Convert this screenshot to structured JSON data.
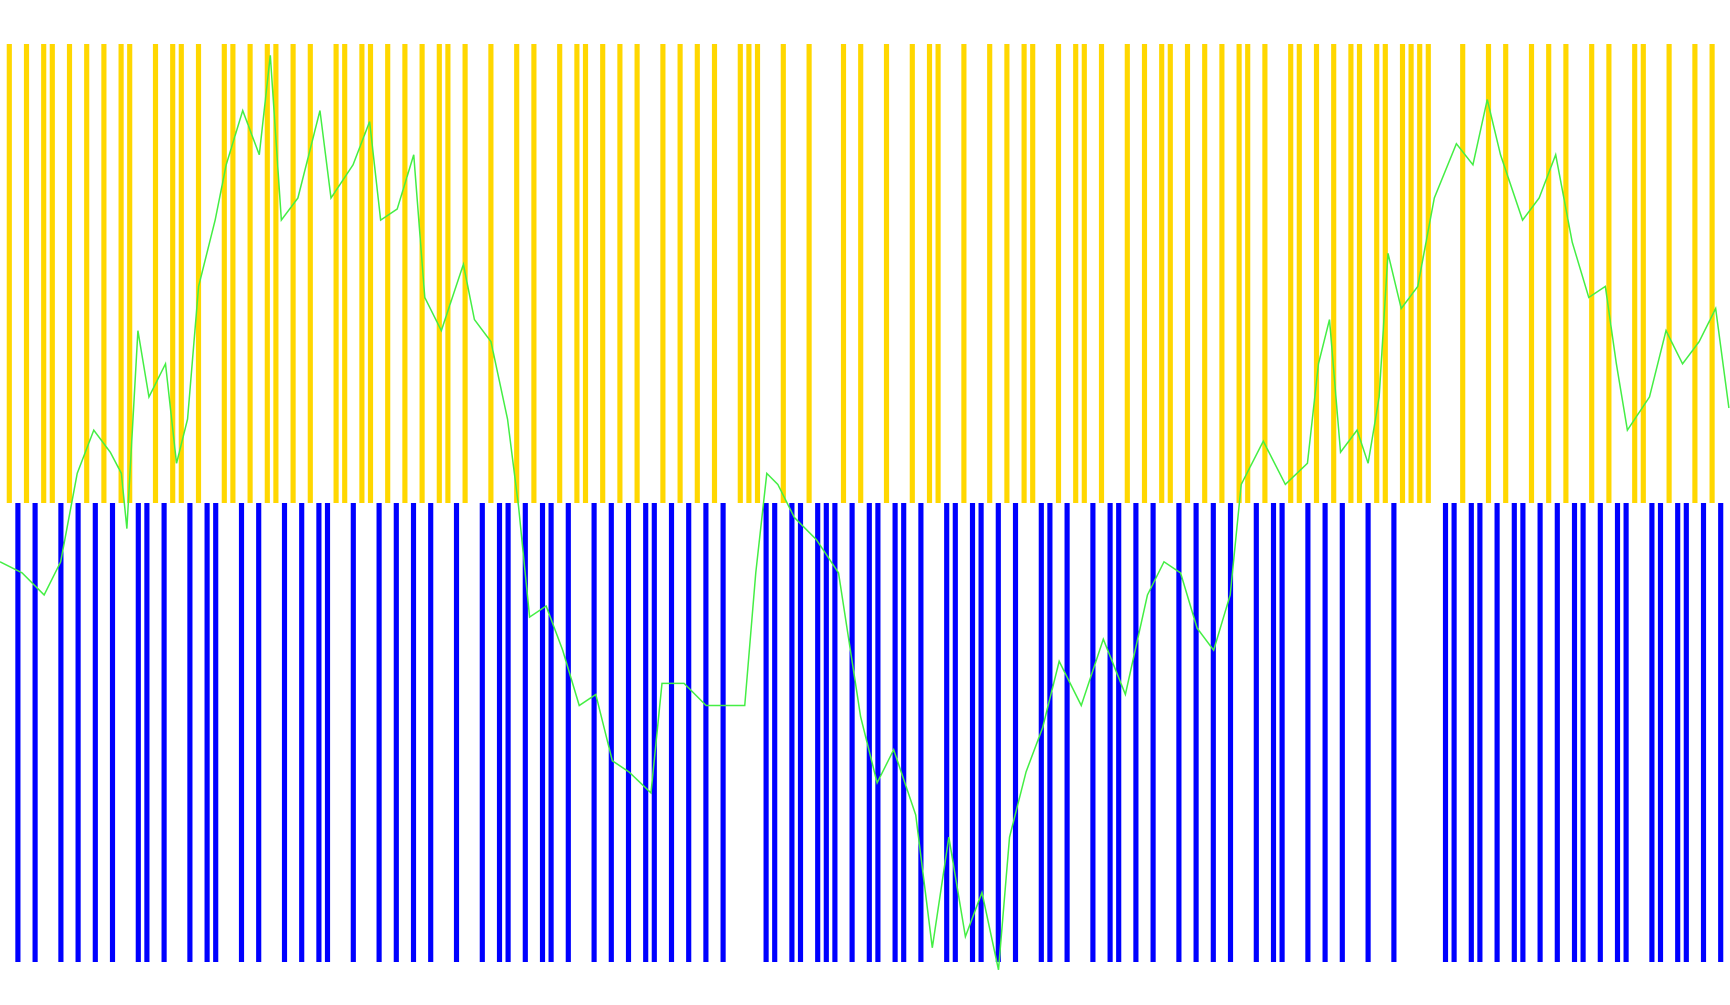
{
  "chart_data": [
    {
      "type": "bar",
      "values": [
        1,
        -1,
        1,
        -1,
        1,
        1,
        -1,
        1,
        -1,
        1,
        -1,
        1,
        -1,
        1,
        1,
        -1,
        -1,
        1,
        -1,
        1,
        1,
        -1,
        1,
        -1,
        -1,
        1,
        1,
        -1,
        1,
        -1,
        1,
        1,
        -1,
        1,
        -1,
        1,
        -1,
        -1,
        1,
        1,
        -1,
        1,
        1,
        -1,
        1,
        -1,
        1,
        -1,
        1,
        -1,
        1,
        1,
        -1,
        1,
        0,
        -1,
        1,
        -1,
        -1,
        1,
        -1,
        1,
        -1,
        -1,
        1,
        -1,
        1,
        1,
        -1,
        1,
        -1,
        1,
        -1,
        1,
        -1,
        -1,
        1,
        -1,
        1,
        -1,
        1,
        -1,
        1,
        -1,
        0,
        1,
        1,
        1,
        -1,
        -1,
        1,
        -1,
        -1,
        1,
        -1,
        -1,
        -1,
        1,
        -1,
        1,
        -1,
        -1,
        1,
        -1,
        -1,
        1,
        -1,
        1,
        1,
        -1,
        -1,
        1,
        -1,
        -1,
        1,
        -1,
        1,
        -1,
        1,
        1,
        -1,
        -1,
        1,
        -1,
        1,
        1,
        -1,
        1,
        -1,
        -1,
        1,
        -1,
        1,
        -1,
        1,
        1,
        -1,
        1,
        -1,
        1,
        -1,
        1,
        -1,
        1,
        1,
        -1,
        1,
        -1,
        -1,
        1,
        1,
        -1,
        1,
        -1,
        1,
        -1,
        1,
        1,
        -1,
        1,
        1,
        -1,
        1,
        1,
        1,
        1,
        0,
        -1,
        -1,
        1,
        -1,
        -1,
        1,
        -1,
        1,
        -1,
        -1,
        1,
        -1,
        1,
        -1,
        1,
        -1,
        -1,
        1,
        -1,
        1,
        -1,
        -1,
        1,
        1,
        -1,
        -1,
        1,
        -1,
        -1,
        1,
        -1,
        1,
        -1
      ],
      "up_color": "#ffd700",
      "down_color": "#0000ff",
      "ylim": [
        -1,
        1
      ]
    },
    {
      "type": "line",
      "x": [
        0,
        20,
        40,
        55,
        70,
        85,
        100,
        110,
        115,
        125,
        135,
        150,
        160,
        170,
        180,
        195,
        205,
        220,
        235,
        245,
        255,
        270,
        290,
        300,
        320,
        335,
        345,
        360,
        375,
        385,
        400,
        420,
        430,
        445,
        460,
        470,
        480,
        495,
        510,
        525,
        540,
        555,
        570,
        590,
        600,
        620,
        640,
        660,
        675,
        685,
        695,
        705,
        720,
        740,
        760,
        780,
        795,
        810,
        830,
        845,
        860,
        875,
        890,
        905,
        915,
        930,
        945,
        960,
        980,
        1000,
        1020,
        1040,
        1055,
        1070,
        1085,
        1100,
        1115,
        1125,
        1145,
        1165,
        1185,
        1195,
        1205,
        1215,
        1230,
        1240,
        1250,
        1258,
        1270,
        1285,
        1300,
        1320,
        1335,
        1348,
        1360,
        1380,
        1395,
        1410,
        1425,
        1440,
        1455,
        1465,
        1475,
        1495,
        1510,
        1525,
        1540,
        1555,
        1567
      ],
      "values": [
        44.1,
        43.0,
        40.8,
        44.1,
        52.9,
        57.2,
        55.0,
        52.9,
        47.4,
        67.1,
        60.5,
        63.8,
        53.9,
        58.3,
        71.5,
        78.1,
        83.6,
        89.0,
        84.6,
        94.5,
        78.1,
        80.3,
        89.0,
        80.3,
        83.6,
        87.9,
        78.1,
        79.2,
        84.6,
        70.4,
        67.1,
        73.7,
        68.2,
        66.0,
        58.3,
        49.6,
        38.6,
        39.7,
        35.3,
        29.8,
        30.9,
        24.3,
        23.2,
        21.1,
        32.0,
        32.0,
        29.8,
        29.8,
        29.8,
        43.0,
        52.9,
        51.8,
        48.5,
        46.3,
        43.0,
        28.7,
        22.1,
        25.4,
        18.9,
        5.7,
        16.7,
        6.8,
        11.2,
        3.5,
        16.7,
        23.2,
        27.6,
        34.2,
        29.8,
        36.4,
        30.9,
        40.8,
        44.1,
        43.0,
        37.5,
        35.3,
        40.8,
        51.8,
        56.1,
        51.8,
        53.9,
        63.8,
        68.2,
        55.0,
        57.2,
        53.9,
        60.5,
        74.8,
        69.3,
        71.5,
        80.3,
        85.7,
        83.6,
        90.1,
        84.6,
        78.1,
        80.3,
        84.6,
        75.9,
        70.4,
        71.5,
        63.8,
        57.2,
        60.5,
        67.1,
        63.8,
        66.0,
        69.3,
        59.4
      ],
      "color": "#44ee44",
      "xlim": [
        0,
        1568
      ],
      "ylim": [
        0,
        100
      ]
    }
  ]
}
